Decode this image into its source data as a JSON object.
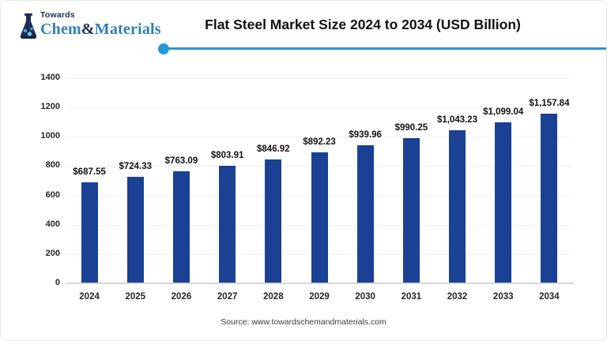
{
  "page": {
    "logo": {
      "towards": "Towards",
      "brand_chem": "Chem",
      "brand_amp": "&",
      "brand_materials": "Materials"
    },
    "title": "Flat Steel Market Size 2024 to 2034 (USD Billion)",
    "source": "Source: www.towardschemandmaterials.com"
  },
  "colors": {
    "bar": "#1b4194",
    "accent_line": "#2598d4",
    "logo_navy": "#1e2d56",
    "logo_blue": "#2c80ba",
    "gridline": "#f0f0f0",
    "axis_line": "#d6d6d6",
    "text": "#1a1a1a"
  },
  "chart_data": {
    "type": "bar",
    "title": "Flat Steel Market Size 2024 to 2034 (USD Billion)",
    "unit": "USD Billion",
    "categories": [
      "2024",
      "2025",
      "2026",
      "2027",
      "2028",
      "2029",
      "2030",
      "2031",
      "2032",
      "2033",
      "2034"
    ],
    "values": [
      687.55,
      724.33,
      763.09,
      803.91,
      846.92,
      892.23,
      939.96,
      990.25,
      1043.23,
      1099.04,
      1157.84
    ],
    "value_labels": [
      "$687.55",
      "$724.33",
      "$763.09",
      "$803.91",
      "$846.92",
      "$892.23",
      "$939.96",
      "$990.25",
      "$1,043.23",
      "$1,099.04",
      "$1,157.84"
    ],
    "xlabel": "",
    "ylabel": "",
    "ylim": [
      0,
      1400
    ],
    "yticks": [
      0,
      200,
      400,
      600,
      800,
      1000,
      1200,
      1400
    ],
    "grid": "horizontal",
    "legend": "none",
    "bar_color": "#1b4194"
  }
}
